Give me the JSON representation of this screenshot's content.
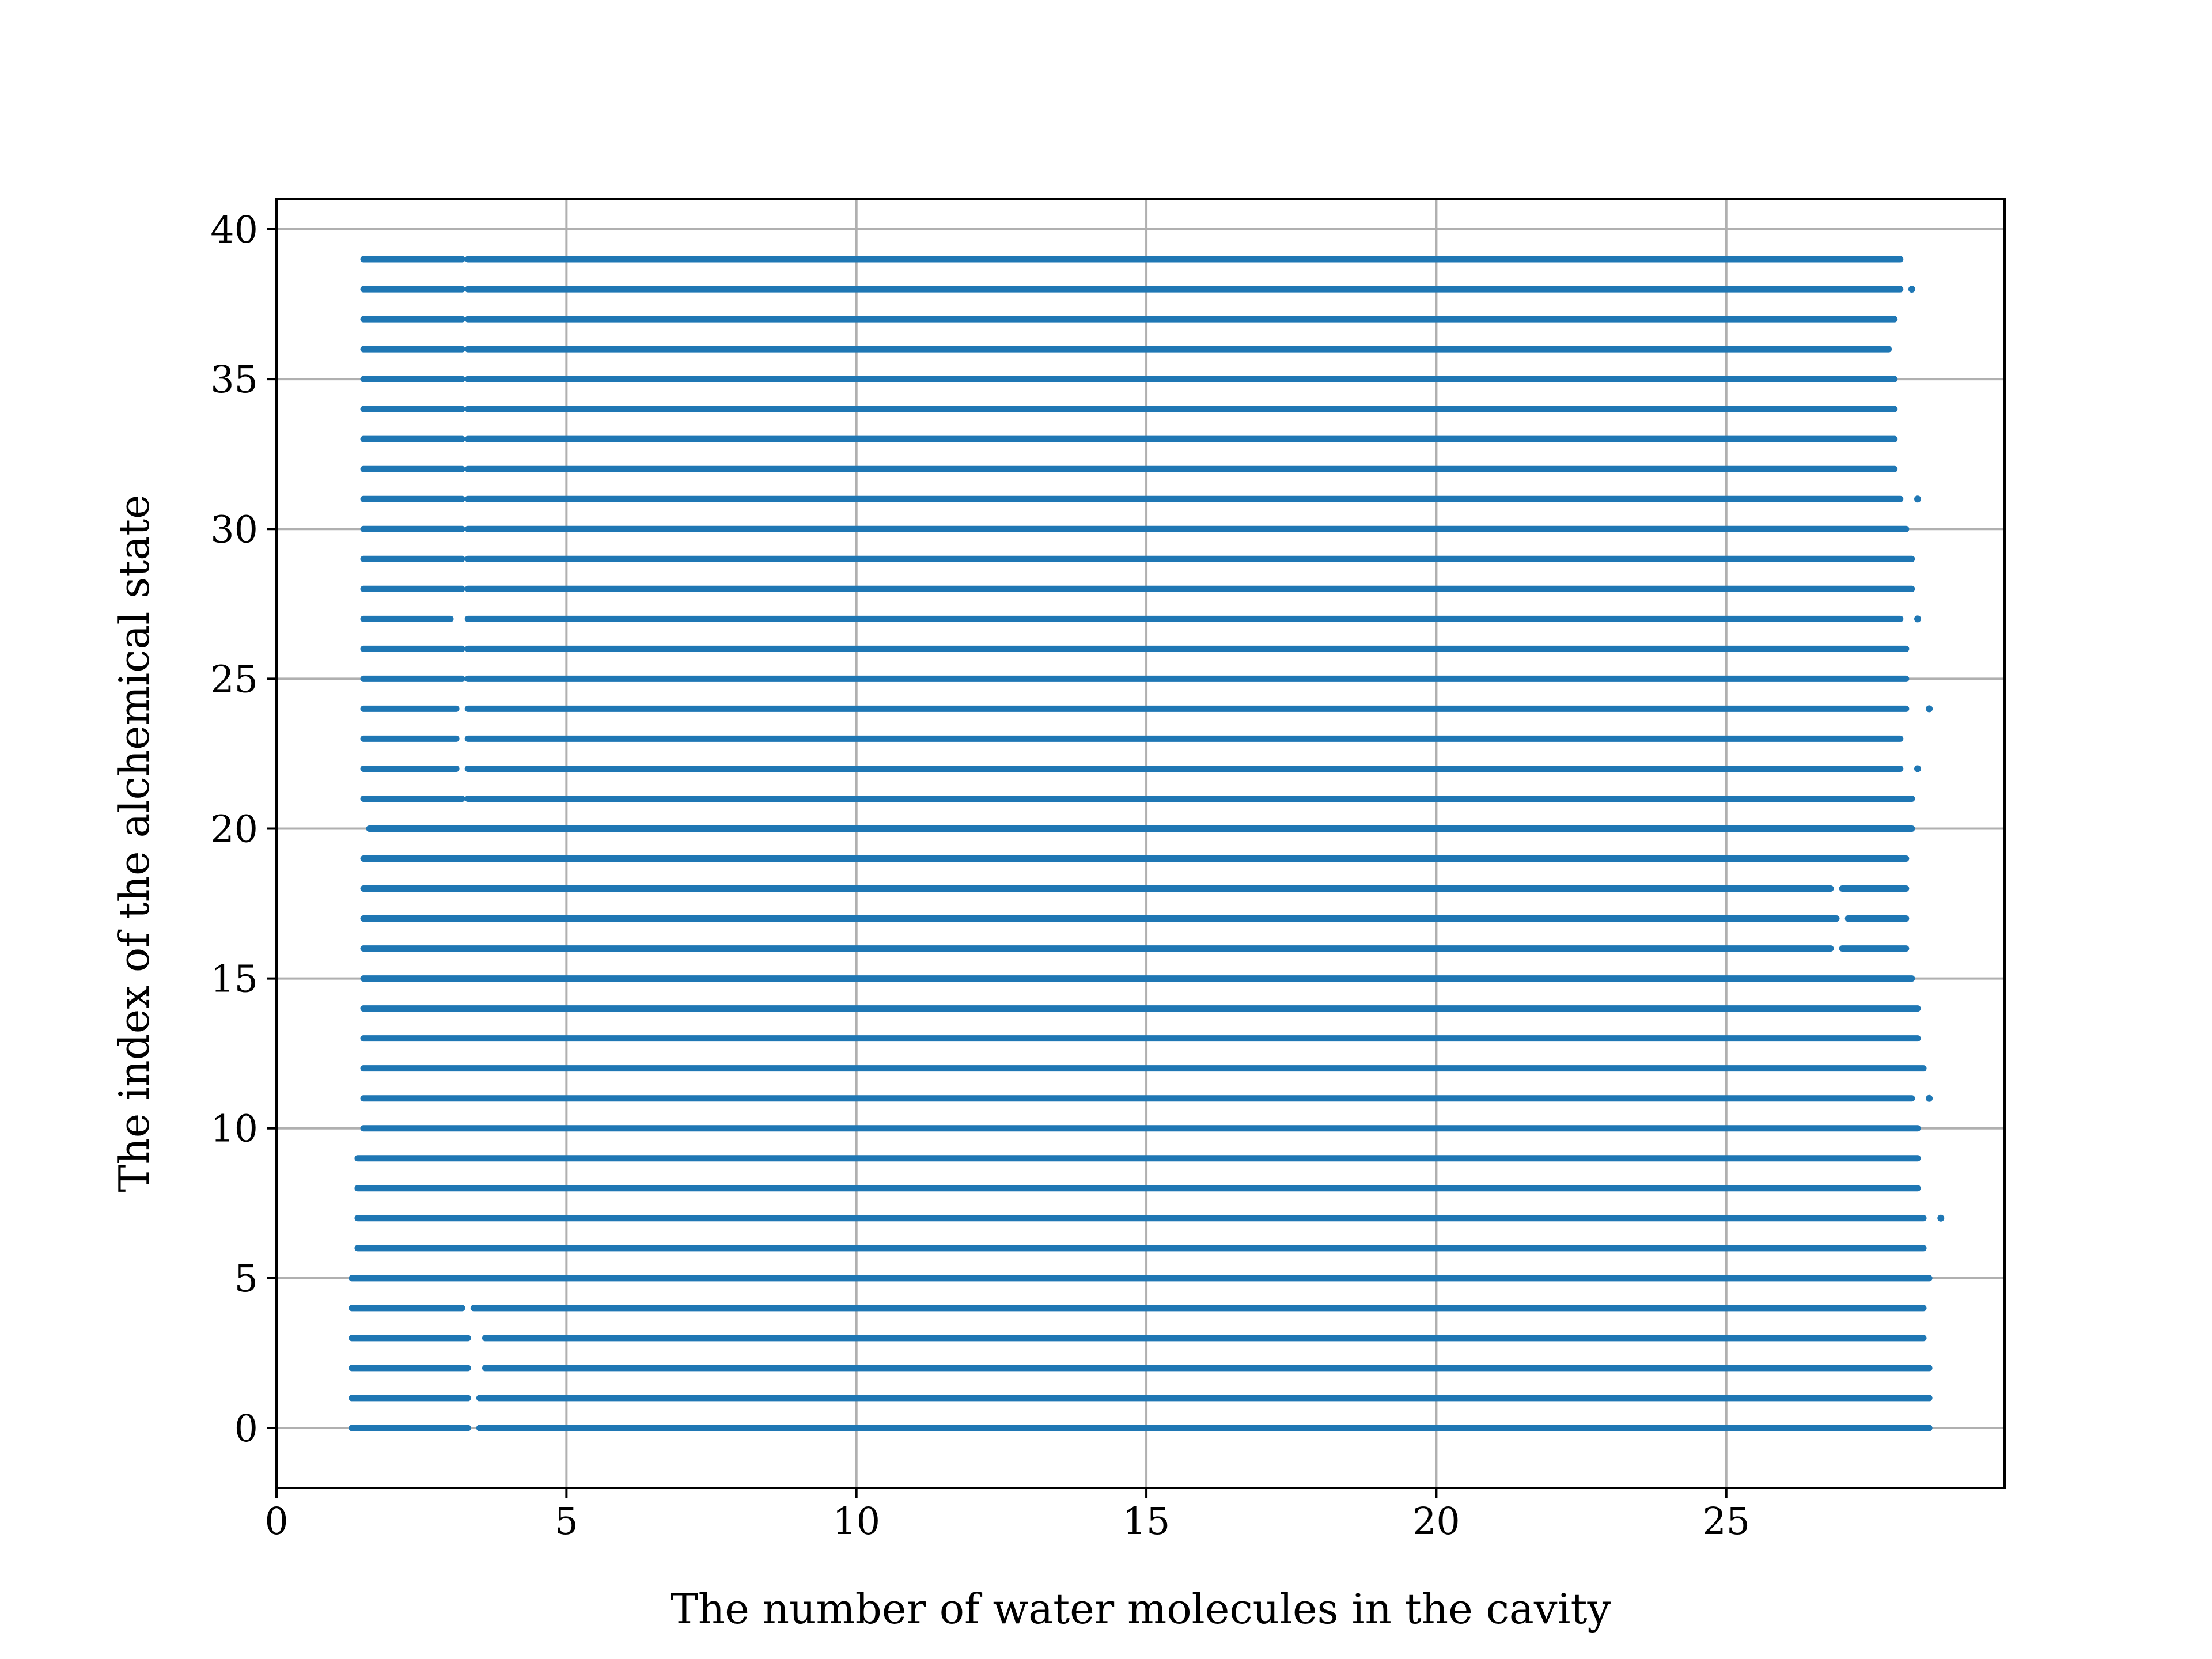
{
  "chart_data": {
    "type": "scatter",
    "title": "",
    "xlabel": "The number of water molecules in the cavity",
    "ylabel": "The index of the alchemical state",
    "xlim": [
      0,
      29.8
    ],
    "ylim": [
      -2,
      41
    ],
    "xticks": [
      0,
      5,
      10,
      15,
      20,
      25
    ],
    "yticks": [
      0,
      5,
      10,
      15,
      20,
      25,
      30,
      35,
      40
    ],
    "grid": true,
    "marker_color": "#1f77b4",
    "series": [
      {
        "rows": [
          {
            "state": 0,
            "ranges": [
              [
                1.3,
                3.3
              ],
              [
                3.5,
                28.5
              ]
            ]
          },
          {
            "state": 1,
            "ranges": [
              [
                1.3,
                3.3
              ],
              [
                3.5,
                28.5
              ]
            ]
          },
          {
            "state": 2,
            "ranges": [
              [
                1.3,
                3.3
              ],
              [
                3.6,
                28.5
              ]
            ]
          },
          {
            "state": 3,
            "ranges": [
              [
                1.3,
                3.3
              ],
              [
                3.6,
                28.4
              ]
            ]
          },
          {
            "state": 4,
            "ranges": [
              [
                1.3,
                3.2
              ],
              [
                3.4,
                28.4
              ]
            ]
          },
          {
            "state": 5,
            "ranges": [
              [
                1.3,
                28.5
              ]
            ]
          },
          {
            "state": 6,
            "ranges": [
              [
                1.4,
                28.4
              ]
            ]
          },
          {
            "state": 7,
            "ranges": [
              [
                1.4,
                28.4
              ]
            ],
            "outliers": [
              28.7
            ]
          },
          {
            "state": 8,
            "ranges": [
              [
                1.4,
                28.3
              ]
            ]
          },
          {
            "state": 9,
            "ranges": [
              [
                1.4,
                28.3
              ]
            ]
          },
          {
            "state": 10,
            "ranges": [
              [
                1.5,
                28.3
              ]
            ]
          },
          {
            "state": 11,
            "ranges": [
              [
                1.5,
                28.2
              ]
            ],
            "outliers": [
              28.5
            ]
          },
          {
            "state": 12,
            "ranges": [
              [
                1.5,
                28.4
              ]
            ]
          },
          {
            "state": 13,
            "ranges": [
              [
                1.5,
                28.3
              ]
            ]
          },
          {
            "state": 14,
            "ranges": [
              [
                1.5,
                28.3
              ]
            ]
          },
          {
            "state": 15,
            "ranges": [
              [
                1.5,
                28.2
              ]
            ]
          },
          {
            "state": 16,
            "ranges": [
              [
                1.5,
                26.8
              ],
              [
                27.0,
                28.1
              ]
            ]
          },
          {
            "state": 17,
            "ranges": [
              [
                1.5,
                26.9
              ],
              [
                27.1,
                28.1
              ]
            ]
          },
          {
            "state": 18,
            "ranges": [
              [
                1.5,
                26.8
              ],
              [
                27.0,
                28.1
              ]
            ]
          },
          {
            "state": 19,
            "ranges": [
              [
                1.5,
                28.1
              ]
            ]
          },
          {
            "state": 20,
            "ranges": [
              [
                1.6,
                28.2
              ]
            ]
          },
          {
            "state": 21,
            "ranges": [
              [
                1.5,
                3.2
              ],
              [
                3.3,
                28.2
              ]
            ]
          },
          {
            "state": 22,
            "ranges": [
              [
                1.5,
                3.1
              ],
              [
                3.3,
                28.0
              ]
            ],
            "outliers": [
              28.3
            ]
          },
          {
            "state": 23,
            "ranges": [
              [
                1.5,
                3.1
              ],
              [
                3.3,
                28.0
              ]
            ]
          },
          {
            "state": 24,
            "ranges": [
              [
                1.5,
                3.1
              ],
              [
                3.3,
                28.1
              ]
            ],
            "outliers": [
              28.5
            ]
          },
          {
            "state": 25,
            "ranges": [
              [
                1.5,
                3.2
              ],
              [
                3.3,
                28.1
              ]
            ]
          },
          {
            "state": 26,
            "ranges": [
              [
                1.5,
                3.2
              ],
              [
                3.3,
                28.1
              ]
            ]
          },
          {
            "state": 27,
            "ranges": [
              [
                1.5,
                3.0
              ],
              [
                3.3,
                28.0
              ]
            ],
            "outliers": [
              28.3
            ]
          },
          {
            "state": 28,
            "ranges": [
              [
                1.5,
                3.2
              ],
              [
                3.3,
                28.2
              ]
            ]
          },
          {
            "state": 29,
            "ranges": [
              [
                1.5,
                3.2
              ],
              [
                3.3,
                28.2
              ]
            ]
          },
          {
            "state": 30,
            "ranges": [
              [
                1.5,
                3.2
              ],
              [
                3.3,
                28.1
              ]
            ]
          },
          {
            "state": 31,
            "ranges": [
              [
                1.5,
                3.2
              ],
              [
                3.3,
                28.0
              ]
            ],
            "outliers": [
              28.3
            ]
          },
          {
            "state": 32,
            "ranges": [
              [
                1.5,
                3.2
              ],
              [
                3.3,
                27.9
              ]
            ]
          },
          {
            "state": 33,
            "ranges": [
              [
                1.5,
                3.2
              ],
              [
                3.3,
                27.9
              ]
            ]
          },
          {
            "state": 34,
            "ranges": [
              [
                1.5,
                3.2
              ],
              [
                3.3,
                27.9
              ]
            ]
          },
          {
            "state": 35,
            "ranges": [
              [
                1.5,
                3.2
              ],
              [
                3.3,
                27.9
              ]
            ]
          },
          {
            "state": 36,
            "ranges": [
              [
                1.5,
                3.2
              ],
              [
                3.3,
                27.8
              ]
            ]
          },
          {
            "state": 37,
            "ranges": [
              [
                1.5,
                3.2
              ],
              [
                3.3,
                27.9
              ]
            ]
          },
          {
            "state": 38,
            "ranges": [
              [
                1.5,
                3.2
              ],
              [
                3.3,
                28.0
              ]
            ],
            "outliers": [
              28.2
            ]
          },
          {
            "state": 39,
            "ranges": [
              [
                1.5,
                3.2
              ],
              [
                3.3,
                28.0
              ]
            ]
          }
        ]
      }
    ]
  }
}
